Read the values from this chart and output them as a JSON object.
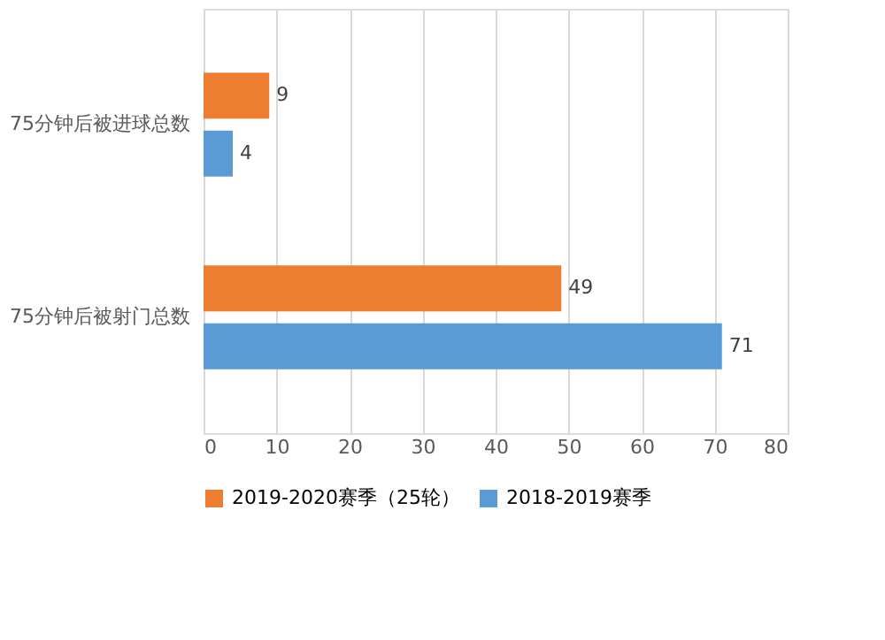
{
  "chart_data": {
    "type": "bar",
    "orientation": "horizontal",
    "categories": [
      "75分钟后被进球总数",
      "75分钟后被射门总数"
    ],
    "series": [
      {
        "name": "2019-2020赛季（25轮）",
        "color": "#ed7d31",
        "values": [
          9,
          49
        ]
      },
      {
        "name": "2018-2019赛季",
        "color": "#5b9bd5",
        "values": [
          4,
          71
        ]
      }
    ],
    "xlim": [
      0,
      80
    ],
    "xticks": [
      0,
      10,
      20,
      30,
      40,
      50,
      60,
      70,
      80
    ],
    "grid": "x",
    "legend": "bottom",
    "data_labels": true
  }
}
